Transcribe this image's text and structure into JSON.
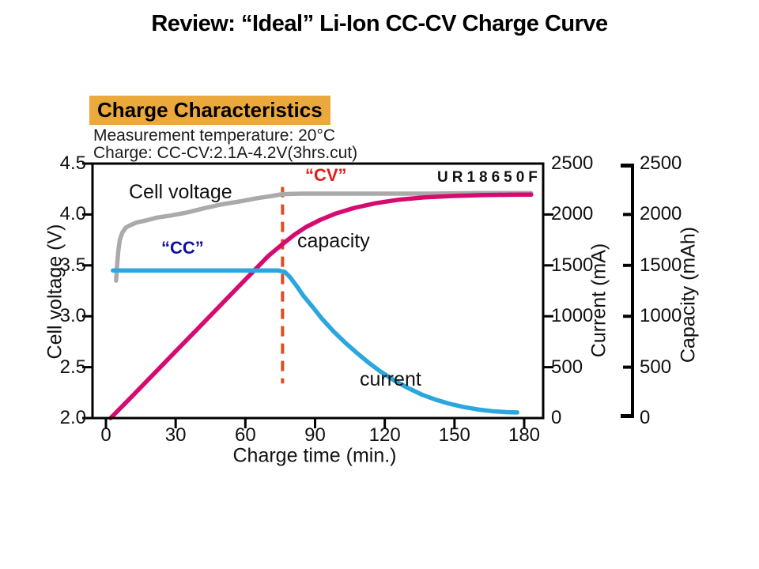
{
  "slide_title": "Review: “Ideal” Li-Ion CC-CV Charge Curve",
  "panel": {
    "header": "Charge Characteristics",
    "conditions": [
      "Measurement temperature: 20°C",
      "Charge: CC-CV:2.1A-4.2V(3hrs.cut)"
    ],
    "model": "UR18650F"
  },
  "labels": {
    "cell_voltage": "Cell voltage",
    "capacity": "capacity",
    "current": "current",
    "cc": "“CC”",
    "cv": "“CV”"
  },
  "colors": {
    "header_bg": "#ECA93B",
    "voltage_curve": "#AAAAAA",
    "capacity_curve": "#D60B6F",
    "current_curve": "#2BA7DE",
    "cv_dash": "#E34A1F",
    "cc_text": "#10109E",
    "cv_text": "#E51A1A"
  },
  "chart_data": {
    "type": "line",
    "title": "Charge Characteristics",
    "xlabel": "Charge time (min.)",
    "xlim": [
      0,
      180
    ],
    "x_ticks": [
      0,
      30,
      60,
      90,
      120,
      150,
      180
    ],
    "grid": false,
    "axes": {
      "voltage": {
        "label": "Cell voltage (V)",
        "lim": [
          2.0,
          4.5
        ],
        "ticks": [
          2.0,
          2.5,
          3.0,
          3.5,
          4.0,
          4.5
        ],
        "tick_labels": [
          "2.0",
          "2.5",
          "3.0",
          "3.5",
          "4.0",
          "4.5"
        ]
      },
      "current": {
        "label": "Current (mA)",
        "lim": [
          0,
          2500
        ],
        "ticks": [
          0,
          500,
          1000,
          1500,
          2000,
          2500
        ],
        "tick_labels": [
          "0",
          "500",
          "1000",
          "1500",
          "2000",
          "2500"
        ]
      },
      "capacity": {
        "label": "Capacity (mAh)",
        "lim": [
          0,
          2500
        ],
        "ticks": [
          0,
          500,
          1000,
          1500,
          2000,
          2500
        ],
        "tick_labels": [
          "0",
          "500",
          "1000",
          "1500",
          "2000",
          "2500"
        ]
      }
    },
    "series": [
      {
        "name": "cell-voltage",
        "axis": "voltage",
        "color": "#AAAAAA",
        "points": [
          [
            4.4,
            3.35
          ],
          [
            4.8,
            3.5
          ],
          [
            5.3,
            3.64
          ],
          [
            6,
            3.75
          ],
          [
            7,
            3.82
          ],
          [
            8.5,
            3.87
          ],
          [
            10,
            3.89
          ],
          [
            13,
            3.92
          ],
          [
            17,
            3.94
          ],
          [
            22,
            3.97
          ],
          [
            28,
            3.99
          ],
          [
            35,
            4.02
          ],
          [
            42,
            4.06
          ],
          [
            50,
            4.1
          ],
          [
            58,
            4.13
          ],
          [
            65,
            4.16
          ],
          [
            71,
            4.18
          ],
          [
            76,
            4.2
          ],
          [
            85,
            4.205
          ],
          [
            100,
            4.205
          ],
          [
            120,
            4.205
          ],
          [
            140,
            4.205
          ],
          [
            160,
            4.21
          ],
          [
            183,
            4.21
          ]
        ]
      },
      {
        "name": "capacity",
        "axis": "capacity",
        "color": "#D60B6F",
        "points": [
          [
            2,
            0
          ],
          [
            10,
            185
          ],
          [
            20,
            420
          ],
          [
            30,
            655
          ],
          [
            40,
            890
          ],
          [
            50,
            1125
          ],
          [
            60,
            1360
          ],
          [
            70,
            1595
          ],
          [
            76,
            1710
          ],
          [
            81,
            1800
          ],
          [
            86,
            1875
          ],
          [
            92,
            1945
          ],
          [
            99,
            2010
          ],
          [
            107,
            2065
          ],
          [
            116,
            2110
          ],
          [
            126,
            2145
          ],
          [
            137,
            2168
          ],
          [
            149,
            2182
          ],
          [
            162,
            2190
          ],
          [
            175,
            2194
          ],
          [
            183,
            2195
          ]
        ]
      },
      {
        "name": "current",
        "axis": "current",
        "color": "#2BA7DE",
        "points": [
          [
            3,
            1450
          ],
          [
            74,
            1450
          ],
          [
            77,
            1435
          ],
          [
            79,
            1390
          ],
          [
            82,
            1300
          ],
          [
            85,
            1200
          ],
          [
            89,
            1090
          ],
          [
            93,
            975
          ],
          [
            98,
            850
          ],
          [
            103,
            740
          ],
          [
            108,
            640
          ],
          [
            113,
            545
          ],
          [
            118,
            460
          ],
          [
            124,
            370
          ],
          [
            130,
            295
          ],
          [
            136,
            230
          ],
          [
            142,
            180
          ],
          [
            148,
            140
          ],
          [
            154,
            108
          ],
          [
            160,
            85
          ],
          [
            166,
            68
          ],
          [
            172,
            58
          ],
          [
            177,
            55
          ]
        ]
      }
    ],
    "cv_transition": {
      "time_min": 76,
      "dash_top_v": 4.27,
      "dash_bottom_v": 2.34
    },
    "cc_phase_current_mA": 1450,
    "cv_voltage_v": 4.2,
    "final_capacity_mAh": 2195
  }
}
